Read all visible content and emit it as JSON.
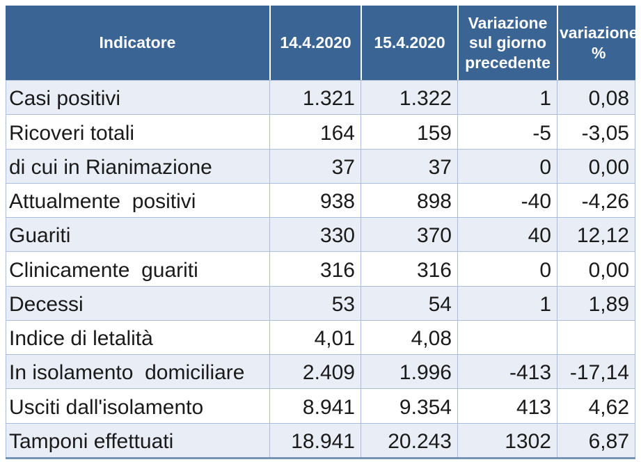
{
  "chart_data": {
    "type": "table",
    "columns": [
      "Indicatore",
      "14.4.2020",
      "15.4.2020",
      "Variazione sul giorno precedente",
      "variazione %"
    ],
    "rows": [
      [
        "Casi positivi",
        "1.321",
        "1.322",
        "1",
        "0,08"
      ],
      [
        "Ricoveri totali",
        "164",
        "159",
        "-5",
        "-3,05"
      ],
      [
        "di cui in Rianimazione",
        "37",
        "37",
        "0",
        "0,00"
      ],
      [
        "Attualmente  positivi",
        "938",
        "898",
        "-40",
        "-4,26"
      ],
      [
        "Guariti",
        "330",
        "370",
        "40",
        "12,12"
      ],
      [
        "Clinicamente  guariti",
        "316",
        "316",
        "0",
        "0,00"
      ],
      [
        "Decessi",
        "53",
        "54",
        "1",
        "1,89"
      ],
      [
        "Indice di letalità",
        "4,01",
        "4,08",
        "",
        ""
      ],
      [
        "In isolamento  domiciliare",
        "2.409",
        "1.996",
        "-413",
        "-17,14"
      ],
      [
        "Usciti dall'isolamento",
        "8.941",
        "9.354",
        "413",
        "4,62"
      ],
      [
        "Tamponi effettuati",
        "18.941",
        "20.243",
        "1302",
        "6,87"
      ]
    ],
    "layout_hints": {
      "banded_rows": true,
      "header_position": "top",
      "numeric_alignment": "right"
    }
  },
  "theme": {
    "header_bg": "#3A6494",
    "header_text": "#FFFFFF",
    "band_bg": "#E9EDF6",
    "row_bg": "#FFFFFF",
    "grid": "#A9BCD9",
    "bottom_border": "#7493B8",
    "text": "#1A1A1A"
  }
}
